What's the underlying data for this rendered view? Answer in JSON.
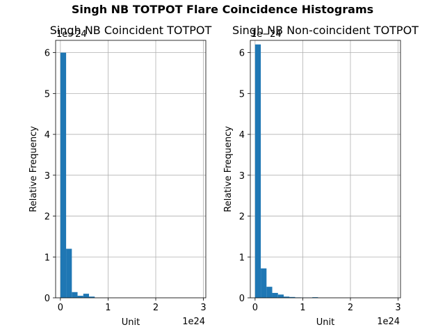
{
  "figure_title": "Singh NB TOTPOT Flare Coincidence Histograms",
  "chart_data": [
    {
      "type": "bar",
      "title": "Singh NB Coincident TOTPOT",
      "xlabel": "Unit",
      "ylabel": "Relative Frequency",
      "x_offset_text": "1e24",
      "y_offset_text": "1e−24",
      "xlim": [
        -1e+23,
        3.05e+24
      ],
      "ylim": [
        0,
        6.3e-24
      ],
      "x_ticks": [
        0,
        1,
        2,
        3
      ],
      "y_ticks": [
        0,
        1,
        2,
        3,
        4,
        5,
        6
      ],
      "grid": true,
      "bar_color": "#1f77b4",
      "bin_width": 1.2e+23,
      "bin_starts": [
        0.0,
        1.2e+23,
        2.4e+23,
        3.6e+23,
        4.8e+23,
        6e+23
      ],
      "values": [
        6e-24,
        1.2e-24,
        1.4e-25,
        5e-26,
        1e-25,
        3e-26
      ]
    },
    {
      "type": "bar",
      "title": "Singh NB Non-coincident TOTPOT",
      "xlabel": "Unit",
      "ylabel": "Relative Frequency",
      "x_offset_text": "1e24",
      "y_offset_text": "1e−24",
      "xlim": [
        -1e+23,
        3.05e+24
      ],
      "ylim": [
        0,
        6.3e-24
      ],
      "x_ticks": [
        0,
        1,
        2,
        3
      ],
      "y_ticks": [
        0,
        1,
        2,
        3,
        4,
        5,
        6
      ],
      "grid": true,
      "bar_color": "#1f77b4",
      "bin_width": 1.2e+23,
      "bin_starts": [
        0.0,
        1.2e+23,
        2.4e+23,
        3.6e+23,
        4.8e+23,
        6e+23,
        7.2e+23,
        8.4e+23,
        9.6e+23,
        1.08e+24,
        1.2e+24
      ],
      "values": [
        6.2e-24,
        7.2e-25,
        2.7e-25,
        1.2e-25,
        8e-26,
        3e-26,
        2e-26,
        1e-26,
        5e-27,
        5e-27,
        1.5e-26
      ]
    }
  ]
}
